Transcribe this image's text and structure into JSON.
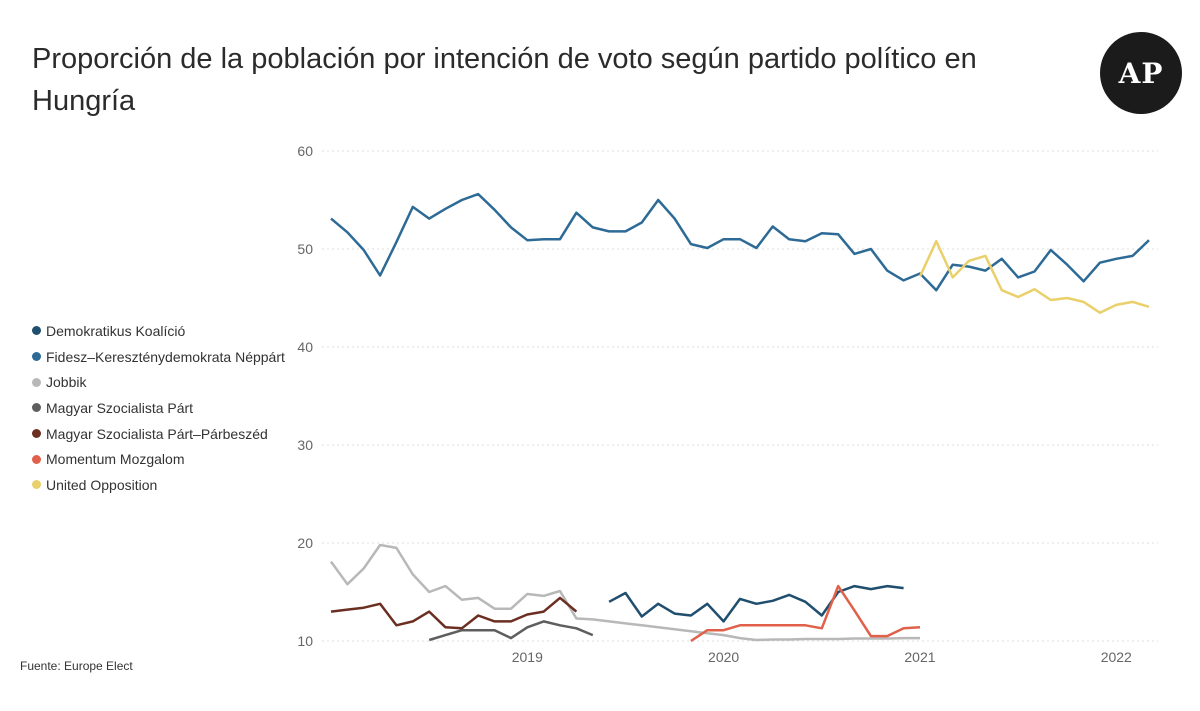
{
  "title": "Proporción de la población por intención de voto según partido político en Hungría",
  "logo": "AP",
  "source": "Fuente: Europe Elect",
  "chart_data": {
    "type": "line",
    "title": "Proporción de la población por intención de voto según partido político en Hungría",
    "xlabel": "",
    "ylabel": "",
    "x_ticks": [
      "2019",
      "2020",
      "2021",
      "2022"
    ],
    "y_ticks": [
      10,
      20,
      30,
      40,
      50,
      60
    ],
    "xlim": [
      "2018-01",
      "2022-03"
    ],
    "ylim": [
      10,
      60
    ],
    "grid": true,
    "legend_position": "left",
    "series": [
      {
        "name": "Demokratikus Koalíció",
        "color": "#1f4e6e",
        "x": [
          "2019-06",
          "2019-07",
          "2019-08",
          "2019-09",
          "2019-10",
          "2019-11",
          "2019-12",
          "2020-01",
          "2020-02",
          "2020-03",
          "2020-04",
          "2020-05",
          "2020-06",
          "2020-07",
          "2020-08",
          "2020-09",
          "2020-10",
          "2020-11",
          "2020-12",
          "2021-01"
        ],
        "values": [
          14.0,
          14.9,
          12.5,
          13.8,
          12.8,
          12.6,
          13.8,
          12.0,
          14.3,
          13.8,
          14.1,
          14.7,
          14.0,
          12.6,
          15.0,
          15.6,
          15.3,
          15.6,
          15.4,
          null
        ]
      },
      {
        "name": "Fidesz–Kereszténydemokrata Néppárt",
        "color": "#2d6a96",
        "x": [
          "2018-01",
          "2018-02",
          "2018-03",
          "2018-04",
          "2018-05",
          "2018-06",
          "2018-07",
          "2018-08",
          "2018-09",
          "2018-10",
          "2018-11",
          "2018-12",
          "2019-01",
          "2019-02",
          "2019-03",
          "2019-04",
          "2019-05",
          "2019-06",
          "2019-07",
          "2019-08",
          "2019-09",
          "2019-10",
          "2019-11",
          "2019-12",
          "2020-01",
          "2020-02",
          "2020-03",
          "2020-04",
          "2020-05",
          "2020-06",
          "2020-07",
          "2020-08",
          "2020-09",
          "2020-10",
          "2020-11",
          "2020-12",
          "2021-01",
          "2021-02",
          "2021-03",
          "2021-04",
          "2021-05",
          "2021-06",
          "2021-07",
          "2021-08",
          "2021-09",
          "2021-10",
          "2021-11",
          "2021-12",
          "2022-01",
          "2022-02",
          "2022-03"
        ],
        "values": [
          53.1,
          51.7,
          49.9,
          47.3,
          50.7,
          54.3,
          53.1,
          54.1,
          55.0,
          55.6,
          54.0,
          52.2,
          50.9,
          51.0,
          51.0,
          53.7,
          52.2,
          51.8,
          51.8,
          52.7,
          55.0,
          53.1,
          50.5,
          50.1,
          51.0,
          51.0,
          50.1,
          52.3,
          51.0,
          50.8,
          51.6,
          51.5,
          49.5,
          50.0,
          47.8,
          46.8,
          47.5,
          45.8,
          48.4,
          48.2,
          47.8,
          49.0,
          47.1,
          47.7,
          49.9,
          48.4,
          46.7,
          48.6,
          49.0,
          49.3,
          50.9
        ]
      },
      {
        "name": "Jobbik",
        "color": "#b8b8b8",
        "x": [
          "2018-01",
          "2018-02",
          "2018-03",
          "2018-04",
          "2018-05",
          "2018-06",
          "2018-07",
          "2018-08",
          "2018-09",
          "2018-10",
          "2018-11",
          "2018-12",
          "2019-01",
          "2019-02",
          "2019-03",
          "2019-04",
          "2019-05",
          "2019-06",
          "2019-07",
          "2019-08",
          "2019-09",
          "2019-10",
          "2019-11",
          "2019-12",
          "2020-01",
          "2020-02",
          "2020-03",
          "2020-04",
          "2020-05",
          "2020-06",
          "2020-07",
          "2020-08",
          "2020-09",
          "2020-10",
          "2020-11",
          "2020-12",
          "2021-01"
        ],
        "values": [
          18.1,
          15.8,
          17.4,
          19.8,
          19.5,
          16.8,
          15.0,
          15.6,
          14.2,
          14.4,
          13.3,
          13.3,
          14.8,
          14.6,
          15.1,
          12.3,
          12.2,
          12.0,
          11.8,
          11.6,
          11.4,
          11.2,
          11.0,
          10.8,
          10.6,
          10.3,
          10.1,
          10.15,
          10.15,
          10.2,
          10.2,
          10.2,
          10.25,
          10.25,
          10.25,
          10.3,
          10.3
        ]
      },
      {
        "name": "Magyar Szocialista Párt",
        "color": "#5e5e5e",
        "x": [
          "2018-07",
          "2018-08",
          "2018-09",
          "2018-10",
          "2018-11",
          "2018-12",
          "2019-01",
          "2019-02",
          "2019-03",
          "2019-04",
          "2019-05",
          "2019-06"
        ],
        "values": [
          10.1,
          10.6,
          11.1,
          11.1,
          11.1,
          10.3,
          11.4,
          12.0,
          11.6,
          11.3,
          10.6,
          null
        ]
      },
      {
        "name": "Magyar Szocialista Párt–Párbeszéd",
        "color": "#6b2f22",
        "x": [
          "2018-01",
          "2018-02",
          "2018-03",
          "2018-04",
          "2018-05",
          "2018-06",
          "2018-07",
          "2018-08",
          "2018-09",
          "2018-10",
          "2018-11",
          "2018-12",
          "2019-01",
          "2019-02",
          "2019-03",
          "2019-04",
          "2019-05"
        ],
        "values": [
          13.0,
          13.2,
          13.4,
          13.8,
          11.6,
          12.0,
          13.0,
          11.4,
          11.3,
          12.6,
          12.0,
          12.0,
          12.7,
          13.0,
          14.4,
          13.0,
          null
        ]
      },
      {
        "name": "Momentum Mozgalom",
        "color": "#e0604a",
        "x": [
          "2019-11",
          "2019-12",
          "2020-01",
          "2020-02",
          "2020-03",
          "2020-04",
          "2020-05",
          "2020-06",
          "2020-07",
          "2020-08",
          "2020-09",
          "2020-10",
          "2020-11",
          "2020-12",
          "2021-01"
        ],
        "values": [
          10.0,
          11.1,
          11.1,
          11.6,
          11.6,
          11.6,
          11.6,
          11.6,
          11.3,
          15.6,
          13.1,
          10.5,
          10.5,
          11.3,
          11.4
        ]
      },
      {
        "name": "United Opposition",
        "color": "#ead06a",
        "x": [
          "2021-01",
          "2021-02",
          "2021-03",
          "2021-04",
          "2021-05",
          "2021-06",
          "2021-07",
          "2021-08",
          "2021-09",
          "2021-10",
          "2021-11",
          "2021-12",
          "2022-01",
          "2022-02",
          "2022-03"
        ],
        "values": [
          47.2,
          50.8,
          47.1,
          48.8,
          49.3,
          45.8,
          45.1,
          45.9,
          44.8,
          45.0,
          44.6,
          43.5,
          44.3,
          44.6,
          44.1
        ]
      }
    ]
  }
}
